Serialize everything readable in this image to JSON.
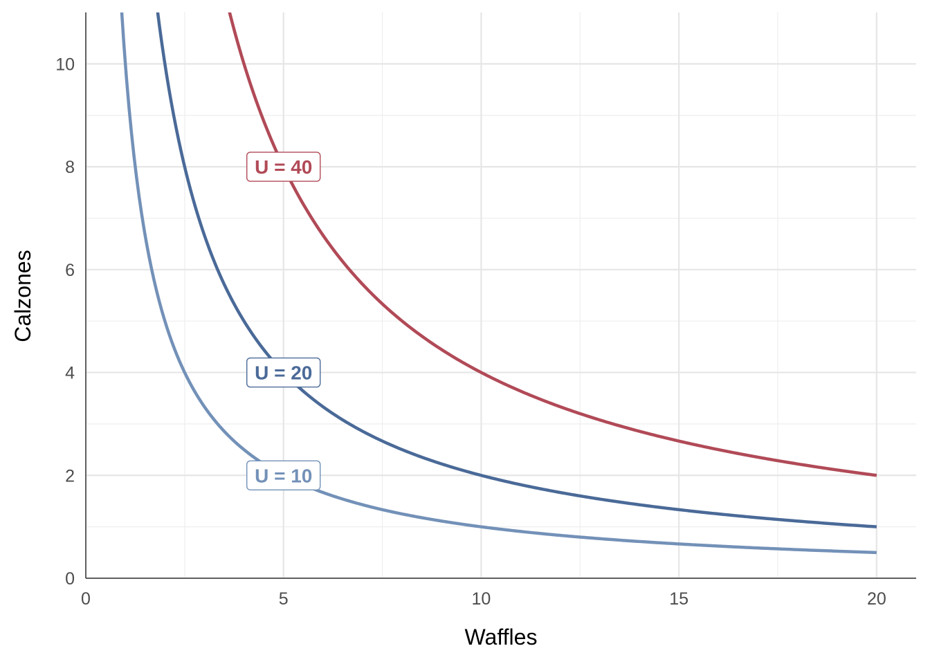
{
  "chart_data": {
    "type": "line",
    "xlabel": "Waffles",
    "ylabel": "Calzones",
    "xlim": [
      0,
      21
    ],
    "ylim": [
      0,
      11
    ],
    "x_ticks": [
      0,
      5,
      10,
      15,
      20
    ],
    "y_ticks": [
      0,
      2,
      4,
      6,
      8,
      10
    ],
    "x_tick_labels": [
      "0",
      "5",
      "10",
      "15",
      "20"
    ],
    "y_tick_labels": [
      "0",
      "2",
      "4",
      "6",
      "8",
      "10"
    ],
    "grid": true,
    "legend": "none",
    "series": [
      {
        "name": "U = 10",
        "color": "#7391b8",
        "x": [
          0.9,
          1,
          1.25,
          1.5,
          2,
          2.5,
          3,
          4,
          5,
          6,
          8,
          10,
          12,
          14,
          16,
          18,
          20
        ],
        "y": [
          11.11,
          10,
          8,
          6.67,
          5,
          4,
          3.33,
          2.5,
          2,
          1.67,
          1.25,
          1,
          0.83,
          0.71,
          0.63,
          0.56,
          0.5
        ],
        "label": {
          "text": "U = 10",
          "x": 5,
          "y": 2
        }
      },
      {
        "name": "U = 20",
        "color": "#4a6a98",
        "x": [
          1.8,
          2,
          2.5,
          3,
          4,
          5,
          6,
          8,
          10,
          12,
          14,
          16,
          18,
          20
        ],
        "y": [
          11.11,
          10,
          8,
          6.67,
          5,
          4,
          3.33,
          2.5,
          2,
          1.67,
          1.43,
          1.25,
          1.11,
          1
        ],
        "label": {
          "text": "U = 20",
          "x": 5,
          "y": 4
        }
      },
      {
        "name": "U = 40",
        "color": "#b14a57",
        "x": [
          3.6,
          4,
          5,
          6,
          8,
          10,
          12,
          14,
          16,
          18,
          20
        ],
        "y": [
          11.11,
          10,
          8,
          6.67,
          5,
          4,
          3.33,
          2.86,
          2.5,
          2.22,
          2
        ],
        "label": {
          "text": "U = 40",
          "x": 5,
          "y": 8
        }
      }
    ]
  }
}
